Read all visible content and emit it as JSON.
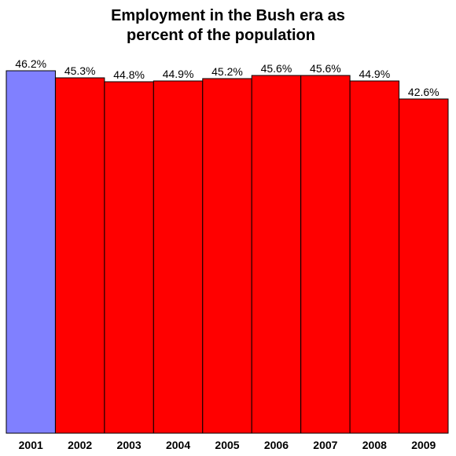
{
  "chart_data": {
    "type": "bar",
    "title_lines": [
      "Employment in the Bush era as",
      "percent of the population"
    ],
    "xlabel": "",
    "ylabel": "",
    "categories": [
      "2001",
      "2002",
      "2003",
      "2004",
      "2005",
      "2006",
      "2007",
      "2008",
      "2009"
    ],
    "values": [
      46.2,
      45.3,
      44.8,
      44.9,
      45.2,
      45.6,
      45.6,
      44.9,
      42.6
    ],
    "value_labels": [
      "46.2%",
      "45.3%",
      "44.8%",
      "44.9%",
      "45.2%",
      "45.6%",
      "45.6%",
      "44.9%",
      "42.6%"
    ],
    "bar_colors": [
      "#8080ff",
      "#ff0000",
      "#ff0000",
      "#ff0000",
      "#ff0000",
      "#ff0000",
      "#ff0000",
      "#ff0000",
      "#ff0000"
    ],
    "ylim": [
      0,
      46.2
    ],
    "grid": false,
    "legend": "none"
  }
}
